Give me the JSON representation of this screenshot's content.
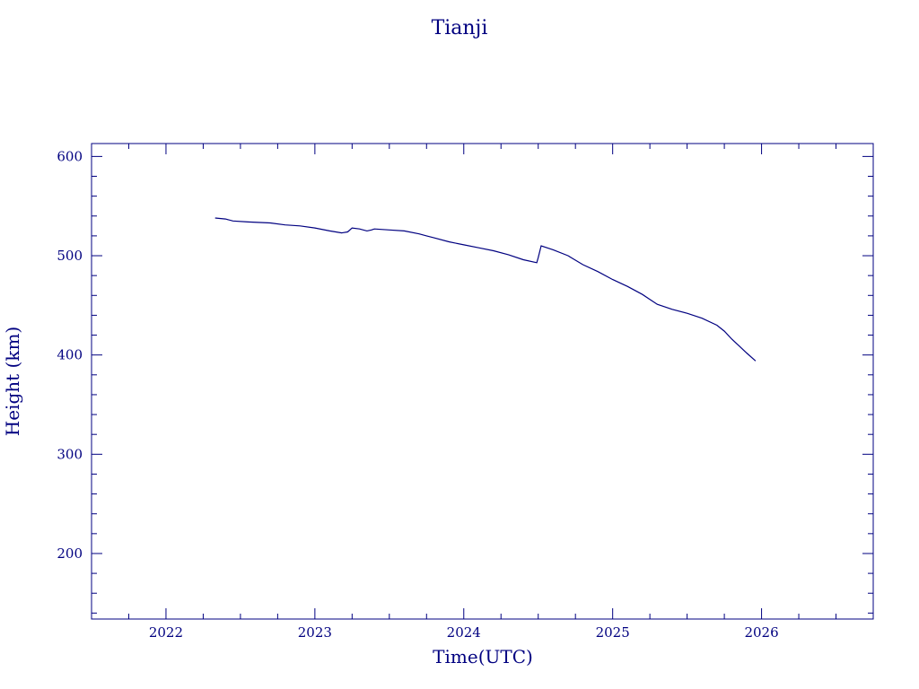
{
  "chart_data": {
    "type": "line",
    "title": "Tianji",
    "xlabel": "Time(UTC)",
    "ylabel": "Height (km)",
    "xlim": [
      2021.5,
      2026.75
    ],
    "ylim": [
      134,
      613
    ],
    "xticks": [
      2022,
      2023,
      2024,
      2025,
      2026
    ],
    "xtick_labels": [
      "2022",
      "2023",
      "2024",
      "2025",
      "2026"
    ],
    "yticks": [
      200,
      300,
      400,
      500,
      600
    ],
    "ytick_labels": [
      "200",
      "300",
      "400",
      "500",
      "600"
    ],
    "grid": false,
    "color": "#000080",
    "series": [
      {
        "x": [
          2022.33,
          2022.4,
          2022.45,
          2022.55,
          2022.7,
          2022.8,
          2022.9,
          2023.0,
          2023.1,
          2023.18,
          2023.22,
          2023.25,
          2023.3,
          2023.35,
          2023.38,
          2023.4,
          2023.5,
          2023.6,
          2023.7,
          2023.75,
          2023.8,
          2023.9,
          2024.0,
          2024.1,
          2024.2,
          2024.3,
          2024.4,
          2024.49,
          2024.5,
          2024.52,
          2024.6,
          2024.7,
          2024.8,
          2024.9,
          2025.0,
          2025.1,
          2025.2,
          2025.25,
          2025.3,
          2025.4,
          2025.5,
          2025.6,
          2025.7,
          2025.75,
          2025.8,
          2025.85,
          2025.9,
          2025.96
        ],
        "y": [
          538,
          537,
          535,
          534,
          533,
          531,
          530,
          528,
          525,
          523,
          524,
          528,
          527,
          525,
          526,
          527,
          526,
          525,
          522,
          520,
          518,
          514,
          511,
          508,
          505,
          501,
          496,
          493,
          498,
          510,
          506,
          500,
          491,
          484,
          476,
          469,
          461,
          456,
          451,
          446,
          442,
          437,
          430,
          424,
          416,
          409,
          402,
          394
        ]
      }
    ]
  }
}
